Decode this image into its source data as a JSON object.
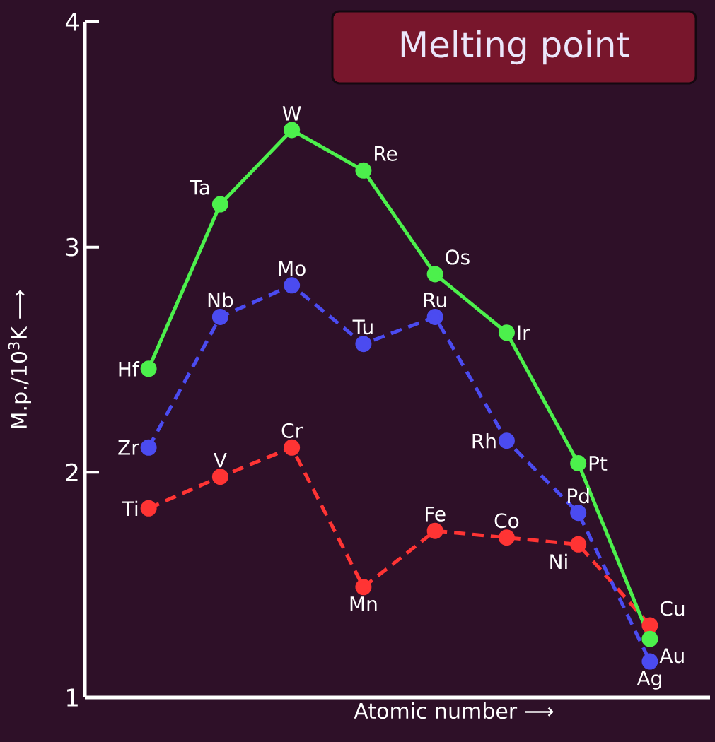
{
  "chart_data": {
    "type": "line",
    "title": "Melting point",
    "xlabel": "Atomic number ⟶",
    "ylabel": "M.p./10$^{3}$K ⟶",
    "categories": [
      null,
      null,
      null,
      null,
      null,
      null,
      null,
      null
    ],
    "series": [
      {
        "color": "#4cf04c",
        "line_style": "solid",
        "values": [
          2.46,
          3.19,
          3.52,
          3.34,
          2.88,
          2.62,
          2.04,
          1.26
        ],
        "value_labels": [
          "Hf",
          "Ta",
          "W",
          "Re",
          "Os",
          "Ir",
          "Pt",
          "Au"
        ]
      },
      {
        "color": "#4b4bf0",
        "line_style": "dashed",
        "values": [
          2.11,
          2.69,
          2.83,
          2.57,
          2.69,
          2.14,
          1.82,
          1.16
        ],
        "value_labels": [
          "Zr",
          "Nb",
          "Mo",
          "Tu",
          "Ru",
          "Rh",
          "Pd",
          "Ag"
        ]
      },
      {
        "color": "#ff3434",
        "line_style": "dashed",
        "values": [
          1.84,
          1.98,
          2.11,
          1.49,
          1.74,
          1.71,
          1.68,
          1.32
        ],
        "value_labels": [
          "Ti",
          "V",
          "Cr",
          "Mn",
          "Fe",
          "Co",
          "Ni",
          "Cu"
        ]
      }
    ],
    "ylim": [
      1,
      4
    ],
    "yticks": [
      1,
      2,
      3,
      4
    ],
    "marker": "circle",
    "grid": false,
    "tick_labels": "y"
  }
}
